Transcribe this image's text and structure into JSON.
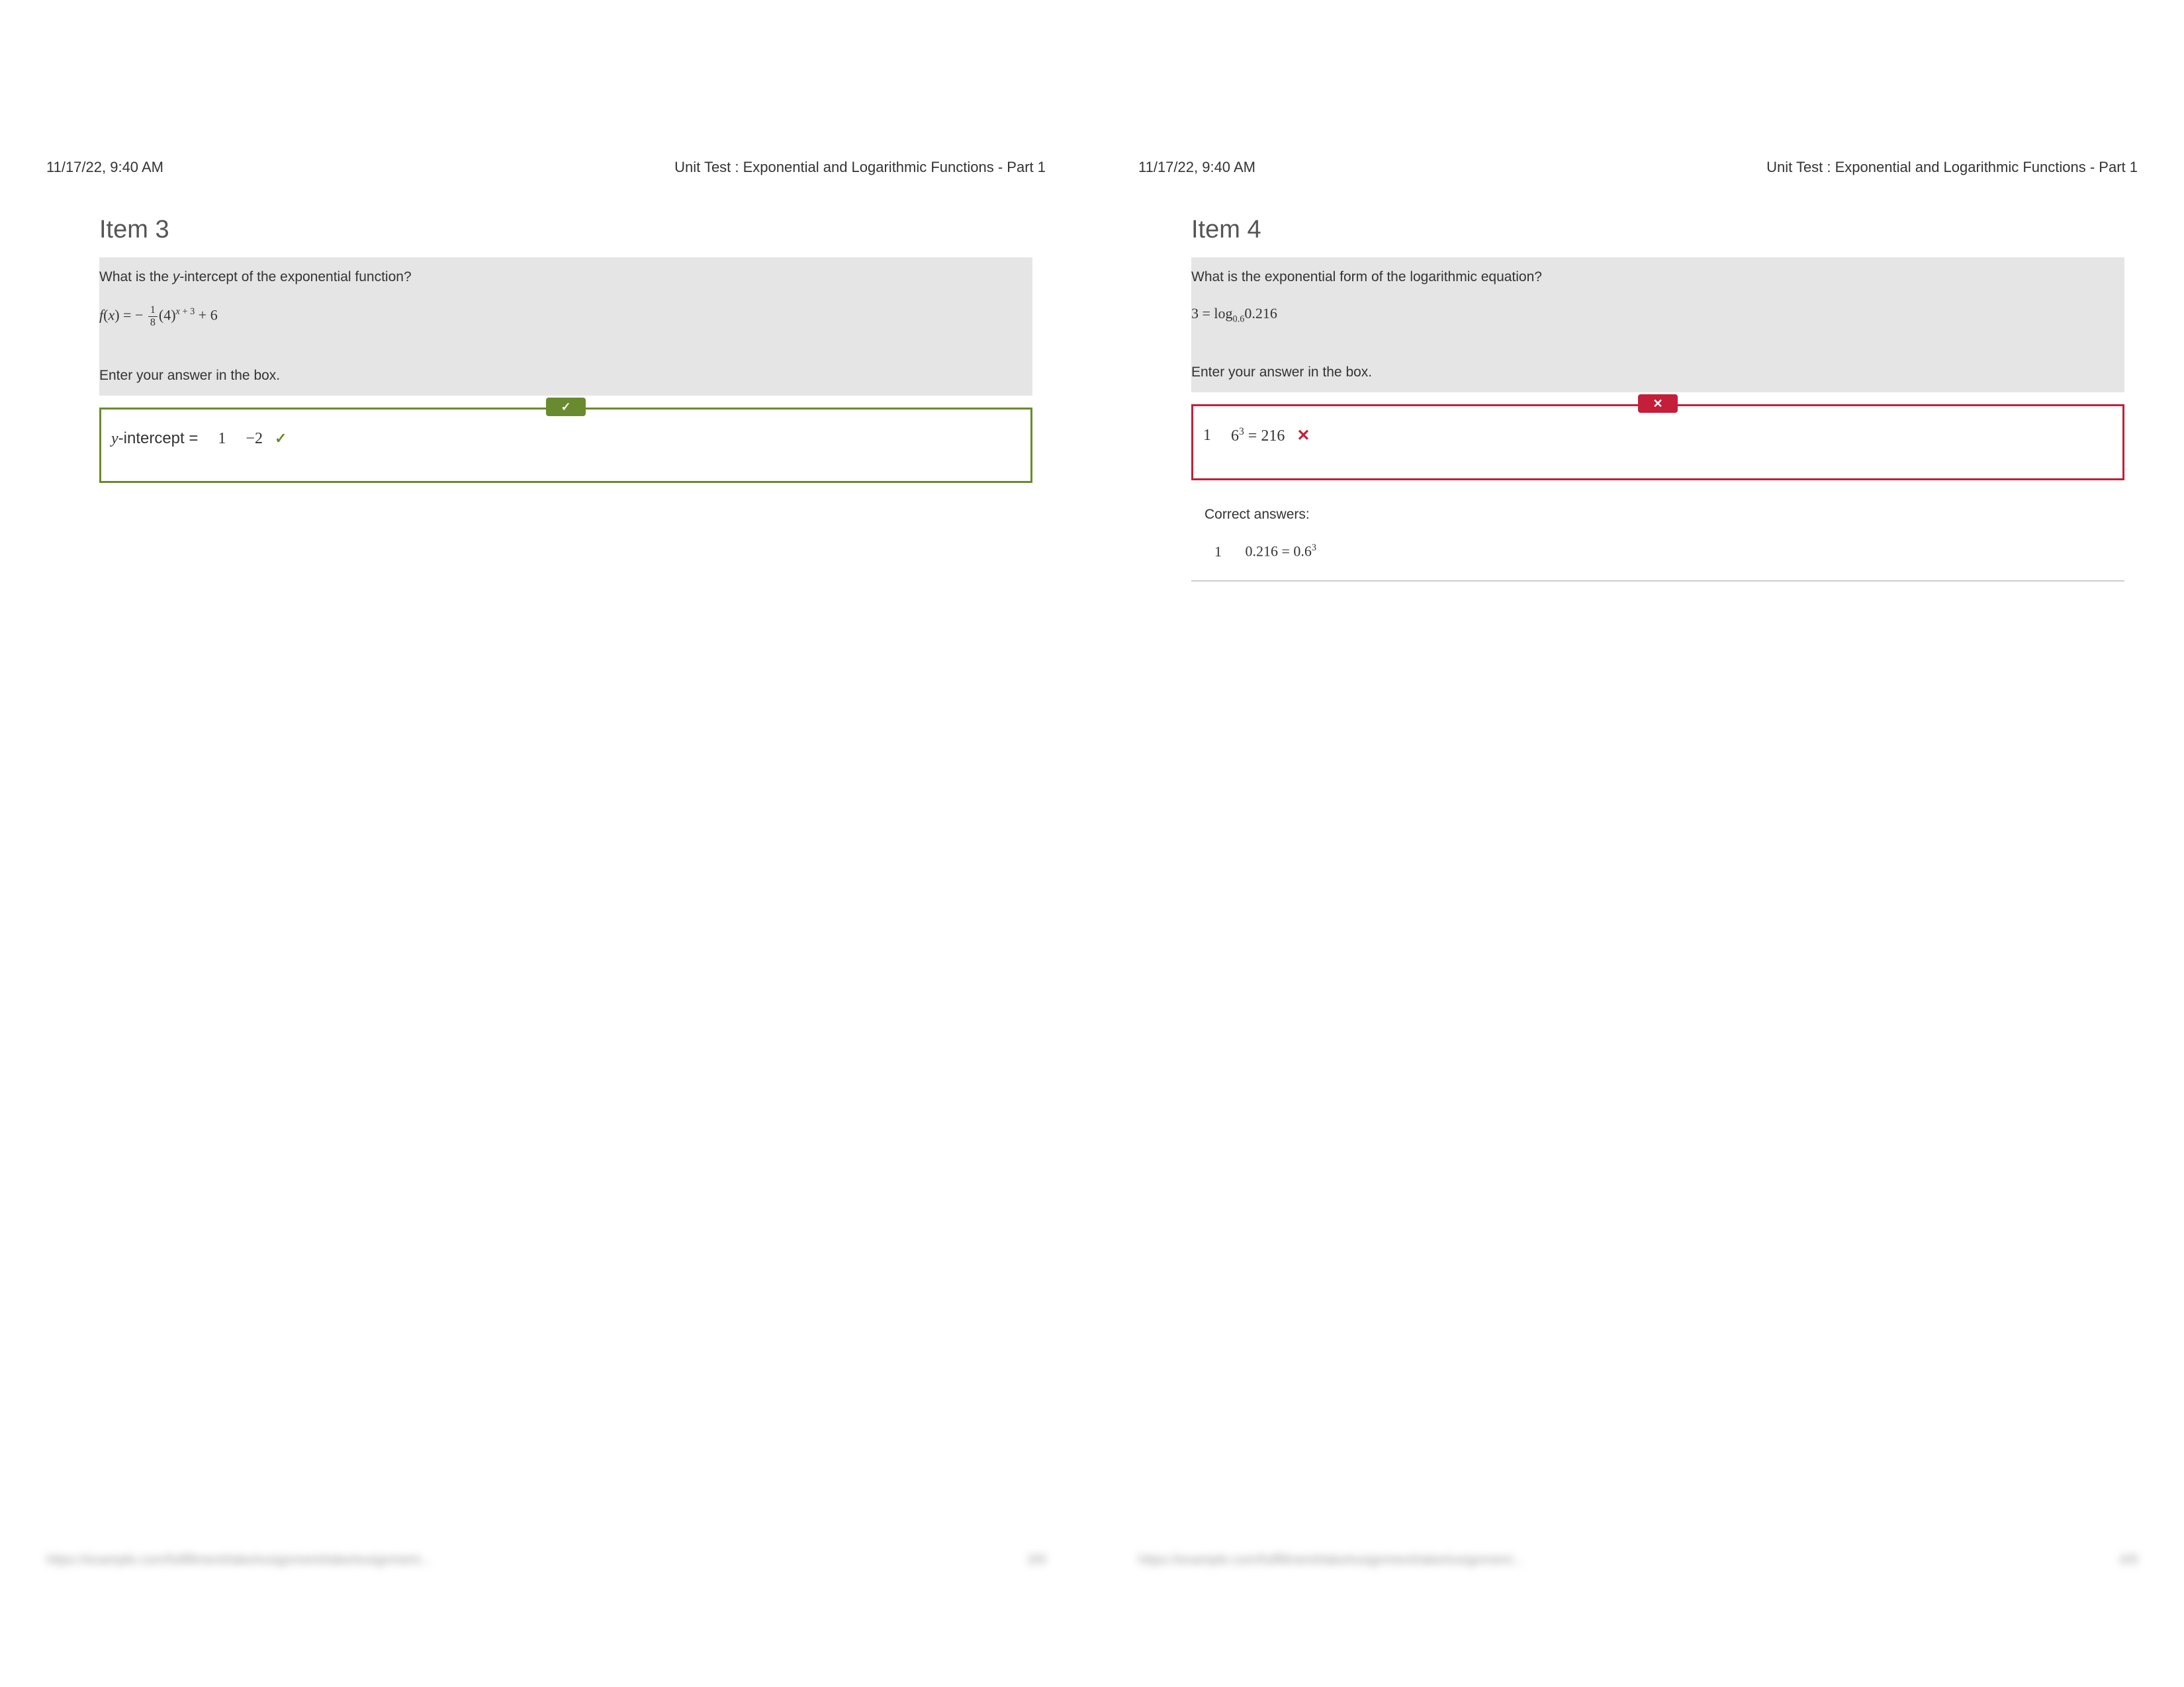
{
  "colors": {
    "correct": "#6a8a2f",
    "incorrect": "#c41e3a",
    "questionBg": "#e5e5e5",
    "text": "#333333",
    "titleText": "#555555",
    "dividerColor": "#cccccc",
    "footerColor": "#999999",
    "white": "#ffffff"
  },
  "typography": {
    "headerFontSize": 22,
    "titleFontSize": 38,
    "questionFontSize": 21,
    "equationFontSize": 22,
    "answerFontSize": 24,
    "bodyFont": "Arial, Helvetica, sans-serif",
    "mathFont": "Times New Roman, serif"
  },
  "pages": [
    {
      "header": {
        "timestamp": "11/17/22, 9:40 AM",
        "title": "Unit Test : Exponential and Logarithmic Functions - Part 1"
      },
      "itemTitle": "Item 3",
      "question": {
        "prompt_prefix": "What is the ",
        "prompt_var": "y",
        "prompt_suffix": "-intercept of the exponential function?",
        "equation": {
          "function": "f",
          "variable": "x",
          "equals": " = ",
          "minus": " − ",
          "frac_num": "1",
          "frac_den": "8",
          "base": "(4)",
          "exponent": "x + 3",
          "plus_const": " + 6"
        },
        "instruction": "Enter your answer in the box."
      },
      "answer": {
        "status": "correct",
        "label_var": "y",
        "label_text": "-intercept = ",
        "index": "1",
        "value_minus": "−",
        "value_num": "2"
      },
      "footer": {
        "url": "https://example.com/fulfillment/takeAssignment/takeAssignment...",
        "pageNum": "3/9"
      }
    },
    {
      "header": {
        "timestamp": "11/17/22, 9:40 AM",
        "title": "Unit Test : Exponential and Logarithmic Functions - Part 1"
      },
      "itemTitle": "Item 4",
      "question": {
        "prompt_full": "What is the exponential form of the logarithmic equation?",
        "equation": {
          "lhs": "3",
          "equals": " = ",
          "log": "log",
          "base_sub": "0.6",
          "arg": "0.216"
        },
        "instruction": "Enter your answer in the box."
      },
      "answer": {
        "status": "incorrect",
        "index": "1",
        "base": "6",
        "exp": "3",
        "equals": " = ",
        "rhs": "216"
      },
      "correctAnswers": {
        "label": "Correct answers:",
        "items": [
          {
            "index": "1",
            "lhs": "0.216",
            "equals": " = ",
            "base": "0.6",
            "exp": "3"
          }
        ]
      },
      "footer": {
        "url": "https://example.com/fulfillment/takeAssignment/takeAssignment...",
        "pageNum": "4/9"
      }
    }
  ]
}
